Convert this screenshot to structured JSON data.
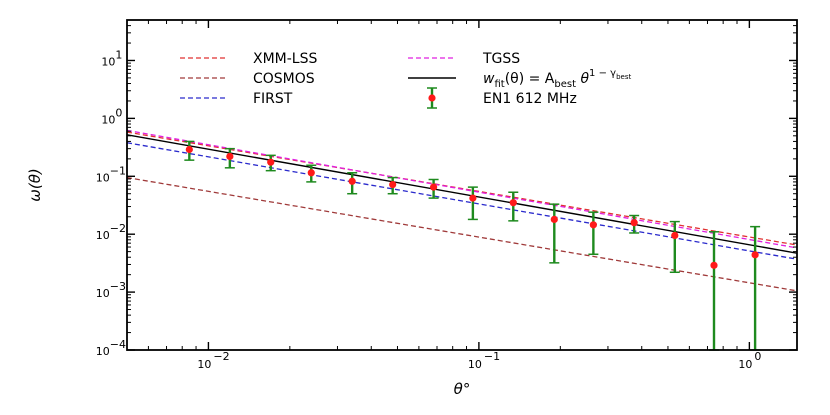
{
  "chart_data": {
    "type": "line",
    "xscale": "log",
    "yscale": "log",
    "xlim": [
      0.005,
      1.5
    ],
    "ylim": [
      0.0001,
      50
    ],
    "xlabel": "θ°",
    "ylabel": "ω(θ)",
    "xticks": [
      {
        "value": 0.01,
        "mantissa": "10",
        "exp": "−2"
      },
      {
        "value": 0.1,
        "mantissa": "10",
        "exp": "−1"
      },
      {
        "value": 1,
        "mantissa": "10",
        "exp": "0"
      }
    ],
    "yticks": [
      {
        "value": 0.0001,
        "mantissa": "10",
        "exp": "−4"
      },
      {
        "value": 0.001,
        "mantissa": "10",
        "exp": "−3"
      },
      {
        "value": 0.01,
        "mantissa": "10",
        "exp": "−2"
      },
      {
        "value": 0.1,
        "mantissa": "10",
        "exp": "−1"
      },
      {
        "value": 1,
        "mantissa": "10",
        "exp": "0"
      },
      {
        "value": 10,
        "mantissa": "10",
        "exp": "1"
      }
    ],
    "grid": false,
    "legend_position": "top-left",
    "lines": [
      {
        "name": "XMM-LSS",
        "color": "#e03030",
        "dash": true,
        "x": [
          0.005,
          1.5
        ],
        "y": [
          0.58,
          0.0065
        ]
      },
      {
        "name": "COSMOS",
        "color": "#a03a3a",
        "dash": true,
        "x": [
          0.005,
          1.5
        ],
        "y": [
          0.095,
          0.00105
        ]
      },
      {
        "name": "FIRST",
        "color": "#2a2acc",
        "dash": true,
        "x": [
          0.005,
          1.5
        ],
        "y": [
          0.38,
          0.0037
        ]
      },
      {
        "name": "TGSS",
        "color": "#e020e0",
        "dash": true,
        "x": [
          0.005,
          1.5
        ],
        "y": [
          0.62,
          0.0058
        ]
      },
      {
        "name": "w_fit",
        "color": "#000000",
        "dash": false,
        "x": [
          0.005,
          1.5
        ],
        "y": [
          0.52,
          0.0047
        ]
      }
    ],
    "legend": {
      "col1": [
        "XMM-LSS",
        "COSMOS",
        "FIRST"
      ],
      "col2": [
        "TGSS",
        "EN1 612 MHz"
      ],
      "fit_label": {
        "w": "w",
        "fit_sub": "fit",
        "paren_theta": "(θ) = A",
        "best_sub": "best",
        "theta": " θ",
        "exp_prefix": "1 − γ",
        "exp_sub": "best"
      }
    },
    "series": [
      {
        "name": "EN1 612 MHz",
        "marker_color": "#ff1a1a",
        "errorbar_color": "#1e8a1e",
        "points": [
          {
            "x": 0.0085,
            "y": 0.29,
            "lo": 0.19,
            "hi": 0.4
          },
          {
            "x": 0.012,
            "y": 0.22,
            "lo": 0.14,
            "hi": 0.3
          },
          {
            "x": 0.017,
            "y": 0.175,
            "lo": 0.125,
            "hi": 0.23
          },
          {
            "x": 0.024,
            "y": 0.115,
            "lo": 0.08,
            "hi": 0.155
          },
          {
            "x": 0.034,
            "y": 0.082,
            "lo": 0.05,
            "hi": 0.115
          },
          {
            "x": 0.048,
            "y": 0.072,
            "lo": 0.05,
            "hi": 0.095
          },
          {
            "x": 0.068,
            "y": 0.065,
            "lo": 0.042,
            "hi": 0.088
          },
          {
            "x": 0.095,
            "y": 0.042,
            "lo": 0.018,
            "hi": 0.065
          },
          {
            "x": 0.134,
            "y": 0.035,
            "lo": 0.017,
            "hi": 0.053
          },
          {
            "x": 0.19,
            "y": 0.018,
            "lo": 0.0032,
            "hi": 0.033
          },
          {
            "x": 0.265,
            "y": 0.0145,
            "lo": 0.0045,
            "hi": 0.024
          },
          {
            "x": 0.375,
            "y": 0.0158,
            "lo": 0.0105,
            "hi": 0.021
          },
          {
            "x": 0.53,
            "y": 0.0095,
            "lo": 0.0022,
            "hi": 0.0165
          },
          {
            "x": 0.74,
            "y": 0.0029,
            "lo": 0.0001,
            "hi": 0.011
          },
          {
            "x": 1.05,
            "y": 0.0044,
            "lo": 0.0001,
            "hi": 0.0135
          }
        ]
      }
    ]
  }
}
